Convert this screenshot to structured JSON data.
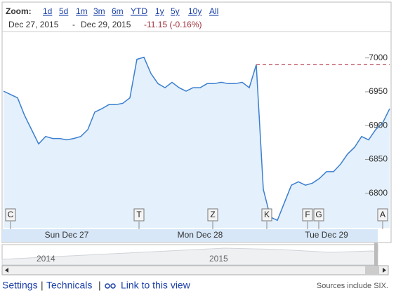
{
  "zoom": {
    "label": "Zoom:",
    "options": [
      "1d",
      "5d",
      "1m",
      "3m",
      "6m",
      "YTD",
      "1y",
      "5y",
      "10y",
      "All"
    ]
  },
  "range": {
    "start": "Dec 27, 2015",
    "separator": "-",
    "end": "Dec 29, 2015",
    "change": "-11.15 (-0.16%)"
  },
  "chart_data": {
    "type": "line",
    "color": "#3b7fd0",
    "fill": "#e4f0fb",
    "categories": [
      null,
      null,
      null,
      null,
      null,
      null,
      null,
      null,
      null,
      "Sun Dec 27",
      null,
      null,
      null,
      null,
      null,
      null,
      null,
      null,
      null,
      null,
      null,
      null,
      null,
      null,
      null,
      null,
      null,
      null,
      "Mon Dec 28",
      null,
      null,
      null,
      null,
      null,
      null,
      null,
      null,
      null,
      null,
      null,
      null,
      null,
      null,
      null,
      null,
      null,
      "Tue Dec 29",
      null,
      null,
      null,
      null,
      null,
      null,
      null,
      null,
      null
    ],
    "values": [
      6951,
      6946,
      6941,
      6915,
      6894,
      6873,
      6884,
      6881,
      6881,
      6879,
      6881,
      6884,
      6894,
      6920,
      6925,
      6931,
      6931,
      6933,
      6941,
      6998,
      7001,
      6977,
      6962,
      6956,
      6964,
      6956,
      6951,
      6956,
      6956,
      6962,
      6962,
      6964,
      6962,
      6962,
      6964,
      6956,
      6990,
      6806,
      6765,
      6760,
      6786,
      6812,
      6817,
      6812,
      6815,
      6822,
      6832,
      6832,
      6843,
      6858,
      6868,
      6884,
      6879,
      6894,
      6904,
      6925
    ],
    "reference_line": 6990,
    "ylim": [
      6749,
      7039
    ],
    "yticks": [
      6800,
      6850,
      6900,
      6950,
      7000
    ],
    "flags": [
      "C",
      "T",
      "Z",
      "K",
      "F",
      "G",
      "A"
    ]
  },
  "navigator": {
    "labels": [
      "2014",
      "2015"
    ]
  },
  "footer": {
    "links": [
      "Settings",
      "|",
      "Technicals",
      "|",
      "Link to this view"
    ],
    "sources": "Sources include SIX."
  }
}
